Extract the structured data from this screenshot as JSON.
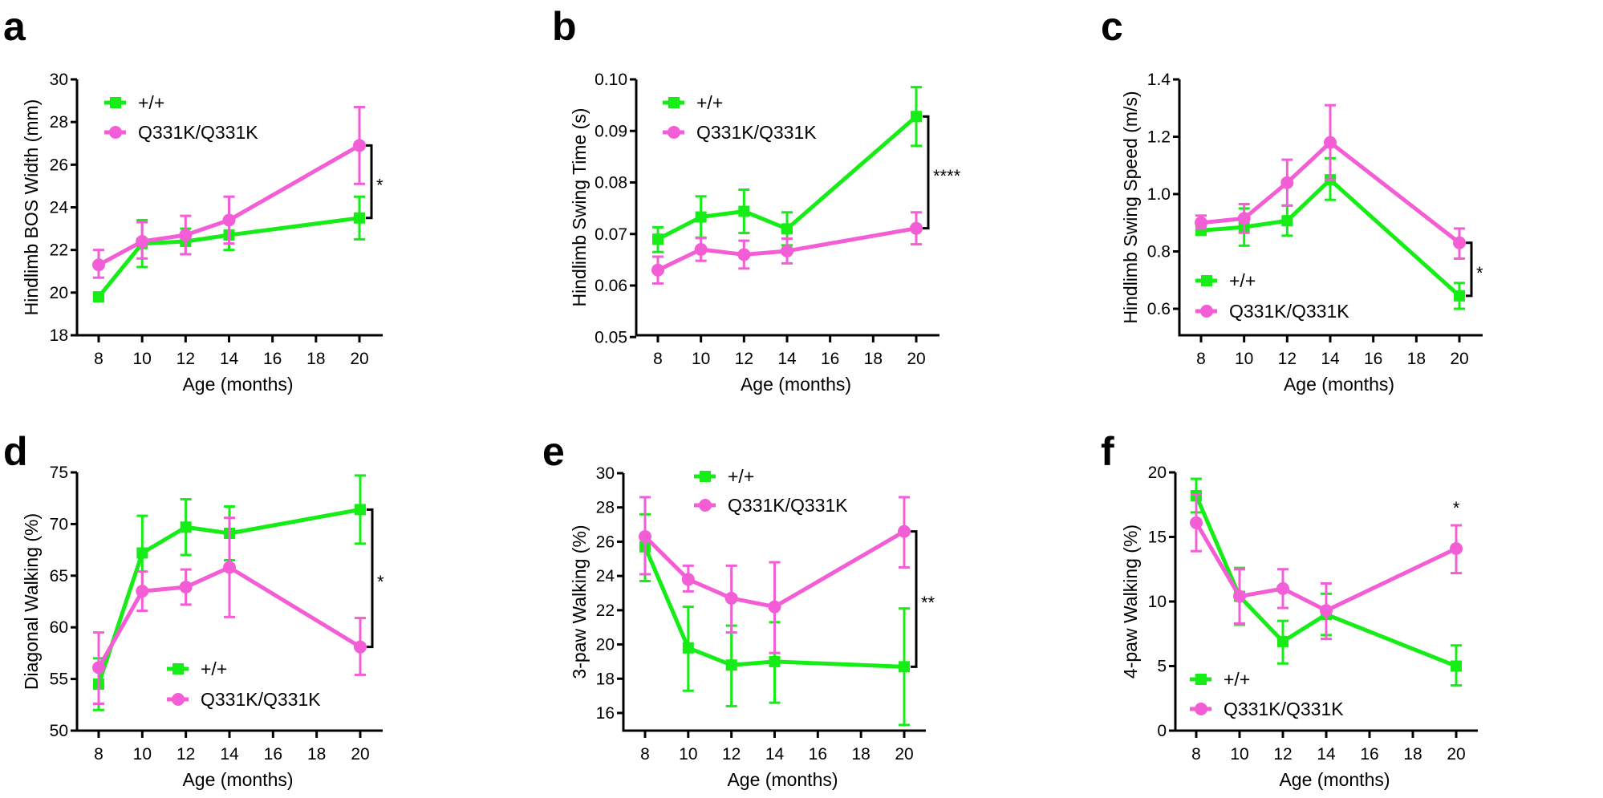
{
  "colors": {
    "wild_type": "#16ec16",
    "mutant": "#f35dd6",
    "axis": "#000000"
  },
  "chart_data": [
    {
      "panel": "a",
      "type": "line",
      "xlabel": "Age (months)",
      "ylabel": "Hindlimb BOS Width (mm)",
      "xticks": [
        "8",
        "10",
        "12",
        "14",
        "16",
        "18",
        "20"
      ],
      "yticks": [
        "18",
        "20",
        "22",
        "24",
        "26",
        "28",
        "30"
      ],
      "ylim": [
        18,
        30
      ],
      "xlim": [
        7,
        21
      ],
      "legend": "top-left",
      "x": [
        8,
        10,
        12,
        14,
        20
      ],
      "series": [
        {
          "name": "+/+",
          "marker": "square",
          "values": [
            19.8,
            22.3,
            22.4,
            22.7,
            23.5
          ],
          "err_low": [
            19.6,
            21.2,
            21.8,
            22.0,
            22.5
          ],
          "err_high": [
            20.0,
            23.4,
            23.0,
            23.3,
            24.5
          ]
        },
        {
          "name": "Q331K/Q331K",
          "marker": "circle",
          "values": [
            21.3,
            22.4,
            22.7,
            23.4,
            26.9
          ],
          "err_low": [
            20.7,
            21.6,
            21.8,
            22.3,
            25.1
          ],
          "err_high": [
            22.0,
            23.3,
            23.6,
            24.5,
            28.7
          ]
        }
      ],
      "significance": {
        "type": "bracket",
        "at_x": 20,
        "from": 23.5,
        "to": 26.9,
        "label": "*"
      }
    },
    {
      "panel": "b",
      "type": "line",
      "xlabel": "Age (months)",
      "ylabel": "Hindlimb Swing Time (s)",
      "xticks": [
        "8",
        "10",
        "12",
        "14",
        "16",
        "18",
        "20"
      ],
      "yticks": [
        "0.05",
        "0.06",
        "0.07",
        "0.08",
        "0.09",
        "0.10"
      ],
      "ylim": [
        0.05,
        0.1
      ],
      "xlim": [
        7,
        21
      ],
      "legend": "top-left",
      "x": [
        8,
        10,
        12,
        14,
        20
      ],
      "series": [
        {
          "name": "+/+",
          "marker": "square",
          "values": [
            0.069,
            0.0733,
            0.0744,
            0.071,
            0.0928
          ],
          "err_low": [
            0.0665,
            0.0693,
            0.0702,
            0.0678,
            0.0871
          ],
          "err_high": [
            0.0713,
            0.0773,
            0.0786,
            0.0742,
            0.0985
          ]
        },
        {
          "name": "Q331K/Q331K",
          "marker": "circle",
          "values": [
            0.063,
            0.067,
            0.066,
            0.0667,
            0.0711
          ],
          "err_low": [
            0.0604,
            0.0648,
            0.0633,
            0.0643,
            0.068
          ],
          "err_high": [
            0.0656,
            0.0692,
            0.0687,
            0.0691,
            0.0742
          ]
        }
      ],
      "significance": {
        "type": "bracket",
        "at_x": 20,
        "from": 0.0711,
        "to": 0.0928,
        "label": "****"
      }
    },
    {
      "panel": "c",
      "type": "line",
      "xlabel": "Age (months)",
      "ylabel": "Hindlimb Swing Speed (m/s)",
      "xticks": [
        "8",
        "10",
        "12",
        "14",
        "16",
        "18",
        "20"
      ],
      "yticks": [
        "0.6",
        "0.8",
        "1.0",
        "1.2",
        "1.4"
      ],
      "ylim": [
        0.51,
        1.4
      ],
      "xlim": [
        7,
        21
      ],
      "legend": "bottom-left",
      "x": [
        8,
        10,
        12,
        14,
        20
      ],
      "series": [
        {
          "name": "+/+",
          "marker": "square",
          "values": [
            0.873,
            0.885,
            0.907,
            1.05,
            0.645
          ],
          "err_low": [
            0.86,
            0.82,
            0.855,
            0.98,
            0.6
          ],
          "err_high": [
            0.89,
            0.95,
            0.96,
            1.125,
            0.69
          ]
        },
        {
          "name": "Q331K/Q331K",
          "marker": "circle",
          "values": [
            0.9,
            0.915,
            1.04,
            1.18,
            0.83
          ],
          "err_low": [
            0.88,
            0.865,
            0.96,
            1.05,
            0.775
          ],
          "err_high": [
            0.925,
            0.965,
            1.12,
            1.31,
            0.88
          ]
        }
      ],
      "significance": {
        "type": "bracket",
        "at_x": 20,
        "from": 0.645,
        "to": 0.83,
        "label": "*"
      }
    },
    {
      "panel": "d",
      "type": "line",
      "xlabel": "Age (months)",
      "ylabel": "Diagonal Walking (%)",
      "xticks": [
        "8",
        "10",
        "12",
        "14",
        "16",
        "18",
        "20"
      ],
      "yticks": [
        "50",
        "55",
        "60",
        "65",
        "70",
        "75"
      ],
      "ylim": [
        50,
        75
      ],
      "xlim": [
        7,
        21
      ],
      "legend": "bottom-center",
      "x": [
        8,
        10,
        12,
        14,
        20
      ],
      "series": [
        {
          "name": "+/+",
          "marker": "square",
          "values": [
            54.5,
            67.2,
            69.7,
            69.1,
            71.4
          ],
          "err_low": [
            52.0,
            63.5,
            67.0,
            66.5,
            68.1
          ],
          "err_high": [
            57.0,
            70.8,
            72.4,
            71.7,
            74.7
          ]
        },
        {
          "name": "Q331K/Q331K",
          "marker": "circle",
          "values": [
            56.1,
            63.5,
            63.9,
            65.8,
            58.1
          ],
          "err_low": [
            52.6,
            61.6,
            62.2,
            61.0,
            55.4
          ],
          "err_high": [
            59.5,
            65.4,
            65.6,
            70.6,
            60.9
          ]
        }
      ],
      "significance": {
        "type": "bracket",
        "at_x": 20,
        "from": 58.1,
        "to": 71.4,
        "label": "*"
      }
    },
    {
      "panel": "e",
      "type": "line",
      "xlabel": "Age (months)",
      "ylabel": "3-paw Walking (%)",
      "xticks": [
        "8",
        "10",
        "12",
        "14",
        "16",
        "18",
        "20"
      ],
      "yticks": [
        "16",
        "18",
        "20",
        "22",
        "24",
        "26",
        "28",
        "30"
      ],
      "ylim": [
        15.3,
        30
      ],
      "xlim": [
        7,
        21
      ],
      "legend": "top-center",
      "x": [
        8,
        10,
        12,
        14,
        20
      ],
      "series": [
        {
          "name": "+/+",
          "marker": "square",
          "values": [
            25.7,
            19.8,
            18.8,
            19.0,
            18.7
          ],
          "err_low": [
            23.7,
            17.3,
            16.4,
            16.6,
            15.3
          ],
          "err_high": [
            27.6,
            22.2,
            21.1,
            21.3,
            22.1
          ]
        },
        {
          "name": "Q331K/Q331K",
          "marker": "circle",
          "values": [
            26.3,
            23.8,
            22.7,
            22.2,
            26.6
          ],
          "err_low": [
            24.1,
            23.1,
            20.7,
            19.5,
            24.5
          ],
          "err_high": [
            28.6,
            24.6,
            24.6,
            24.8,
            28.6
          ]
        }
      ],
      "significance": {
        "type": "bracket",
        "at_x": 20,
        "from": 18.7,
        "to": 26.6,
        "label": "**"
      }
    },
    {
      "panel": "f",
      "type": "line",
      "xlabel": "Age (months)",
      "ylabel": "4-paw Walking (%)",
      "xticks": [
        "8",
        "10",
        "12",
        "14",
        "16",
        "18",
        "20"
      ],
      "yticks": [
        "0",
        "5",
        "10",
        "15",
        "20"
      ],
      "ylim": [
        0,
        20
      ],
      "xlim": [
        7,
        21
      ],
      "legend": "bottom-left",
      "x": [
        8,
        10,
        12,
        14,
        20
      ],
      "series": [
        {
          "name": "+/+",
          "marker": "square",
          "values": [
            18.2,
            10.4,
            6.9,
            9.0,
            5.0
          ],
          "err_low": [
            16.9,
            8.2,
            5.2,
            7.4,
            3.5
          ],
          "err_high": [
            19.5,
            12.6,
            8.5,
            10.6,
            6.6
          ]
        },
        {
          "name": "Q331K/Q331K",
          "marker": "circle",
          "values": [
            16.1,
            10.4,
            11.0,
            9.3,
            14.1
          ],
          "err_low": [
            13.9,
            8.3,
            9.5,
            7.1,
            12.2
          ],
          "err_high": [
            18.3,
            12.5,
            12.5,
            11.4,
            15.9
          ]
        }
      ],
      "significance": {
        "type": "above",
        "at_x": 20,
        "label": "*"
      }
    }
  ]
}
